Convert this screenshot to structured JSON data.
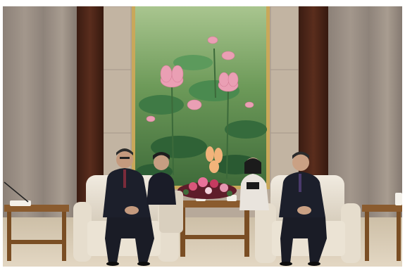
{
  "scene": {
    "palette": {
      "wall": "#b7a99a",
      "curtain_dark": "#4a2418",
      "curtain_light": "#9a8f86",
      "painting_bg": "#6f9a5d",
      "lotus": "#e8a3b5",
      "armchair": "#ebe3d4",
      "suit": "#1c1f2b",
      "table_wood": "#8a5b2e",
      "carpet": "#d9cbb6"
    },
    "icons": [
      "painting",
      "armchair",
      "side-table",
      "flower-arrangement",
      "person"
    ]
  }
}
